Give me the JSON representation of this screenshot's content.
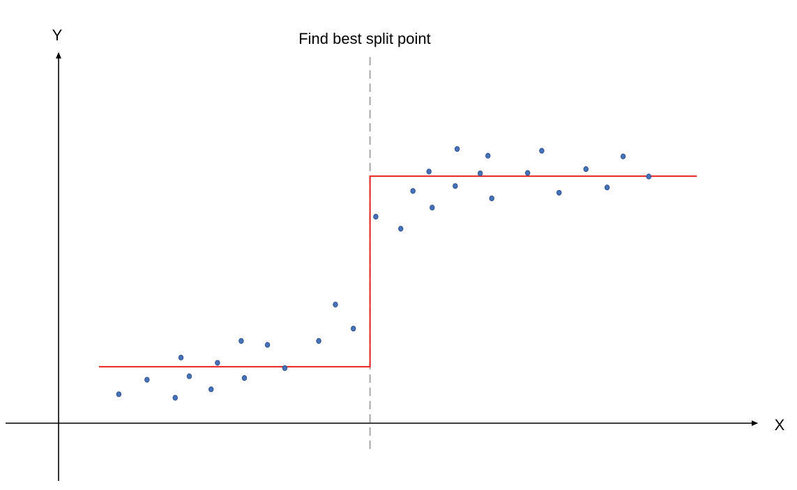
{
  "title": "Find best split point",
  "x_axis_label": "X",
  "y_axis_label": "Y",
  "colors": {
    "axis": "#000000",
    "split": "#a6a6a6",
    "step": "#e8231e",
    "point_fill": "#4572b8",
    "point_stroke": "#2f528f"
  },
  "chart_data": {
    "type": "scatter",
    "x_domain": [
      0,
      100
    ],
    "y_domain": [
      0,
      100
    ],
    "split_x": 48.6,
    "step": {
      "left_level": 16,
      "right_level": 70,
      "x_start": 6.3,
      "x_end": 99.6
    },
    "points": [
      {
        "x": 9.4,
        "y": 8.2
      },
      {
        "x": 13.8,
        "y": 12.3
      },
      {
        "x": 18.2,
        "y": 7.2
      },
      {
        "x": 19.1,
        "y": 18.6
      },
      {
        "x": 20.4,
        "y": 13.3
      },
      {
        "x": 23.8,
        "y": 9.6
      },
      {
        "x": 24.8,
        "y": 17.1
      },
      {
        "x": 28.5,
        "y": 23.3
      },
      {
        "x": 29.0,
        "y": 12.8
      },
      {
        "x": 32.6,
        "y": 22.2
      },
      {
        "x": 35.3,
        "y": 15.6
      },
      {
        "x": 40.6,
        "y": 23.3
      },
      {
        "x": 43.2,
        "y": 33.6
      },
      {
        "x": 46.0,
        "y": 26.8
      },
      {
        "x": 49.5,
        "y": 58.5
      },
      {
        "x": 53.4,
        "y": 55.1
      },
      {
        "x": 55.3,
        "y": 65.8
      },
      {
        "x": 57.8,
        "y": 71.3
      },
      {
        "x": 58.3,
        "y": 61.1
      },
      {
        "x": 61.9,
        "y": 67.2
      },
      {
        "x": 62.2,
        "y": 77.7
      },
      {
        "x": 65.8,
        "y": 70.8
      },
      {
        "x": 67.0,
        "y": 75.8
      },
      {
        "x": 67.6,
        "y": 63.7
      },
      {
        "x": 73.2,
        "y": 70.9
      },
      {
        "x": 75.4,
        "y": 77.2
      },
      {
        "x": 78.1,
        "y": 65.3
      },
      {
        "x": 82.3,
        "y": 72.0
      },
      {
        "x": 85.6,
        "y": 66.8
      },
      {
        "x": 88.1,
        "y": 75.6
      },
      {
        "x": 92.1,
        "y": 69.9
      }
    ]
  }
}
